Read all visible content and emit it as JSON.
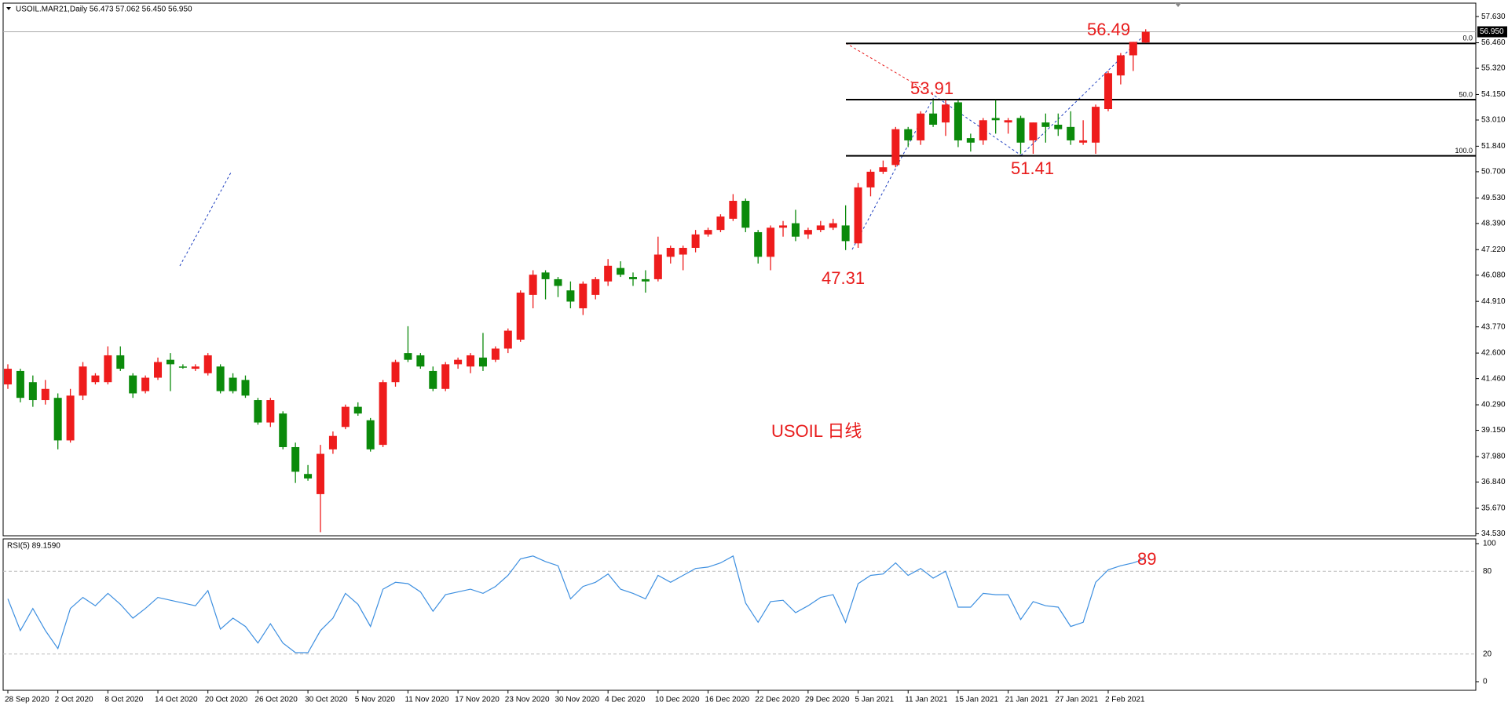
{
  "chart_data": [
    {
      "type": "candlestick",
      "header": "USOIL.MAR21,Daily  56.473 57.062 56.450 56.950",
      "categories": [
        "28 Sep 2020",
        null,
        null,
        null,
        "2 Oct 2020",
        null,
        null,
        null,
        "8 Oct 2020",
        null,
        null,
        null,
        "14 Oct 2020",
        null,
        null,
        null,
        "20 Oct 2020",
        null,
        null,
        null,
        "26 Oct 2020",
        null,
        null,
        null,
        "30 Oct 2020",
        null,
        null,
        null,
        "5 Nov 2020",
        null,
        null,
        null,
        "11 Nov 2020",
        null,
        null,
        null,
        "17 Nov 2020",
        null,
        null,
        null,
        "23 Nov 2020",
        null,
        null,
        null,
        "30 Nov 2020",
        null,
        null,
        null,
        "4 Dec 2020",
        null,
        null,
        null,
        "10 Dec 2020",
        null,
        null,
        null,
        "16 Dec 2020",
        null,
        null,
        null,
        "22 Dec 2020",
        null,
        null,
        null,
        "29 Dec 2020",
        null,
        null,
        null,
        "5 Jan 2021",
        null,
        null,
        null,
        "11 Jan 2021",
        null,
        null,
        null,
        "15 Jan 2021",
        null,
        null,
        null,
        "21 Jan 2021",
        null,
        null,
        null,
        "27 Jan 2021",
        null,
        null,
        null,
        "2 Feb 2021",
        null,
        null,
        null
      ],
      "open": [
        41.2,
        41.8,
        41.3,
        40.5,
        40.6,
        38.7,
        40.7,
        41.3,
        41.3,
        42.5,
        41.6,
        40.9,
        41.5,
        42.3,
        42.0,
        41.9,
        41.7,
        42.0,
        41.5,
        41.4,
        40.5,
        39.5,
        39.9,
        38.4,
        37.2,
        36.3,
        38.3,
        39.3,
        40.2,
        39.6,
        38.5,
        41.3,
        42.6,
        42.5,
        41.8,
        41.0,
        42.1,
        42.0,
        42.4,
        42.3,
        42.8,
        43.2,
        45.2,
        46.2,
        45.9,
        45.4,
        44.6,
        45.2,
        45.8,
        46.4,
        46.0,
        45.9,
        45.9,
        46.9,
        47.0,
        47.3,
        47.9,
        48.1,
        48.6,
        49.4,
        48.0,
        46.9,
        48.2,
        48.4,
        47.9,
        48.1,
        48.2,
        48.3,
        47.5,
        50.0,
        50.7,
        51.0,
        52.6,
        52.1,
        53.3,
        52.9,
        53.8,
        52.2,
        52.1,
        53.1,
        52.9,
        53.1,
        52.1,
        52.9,
        52.8,
        52.7,
        52.0,
        52.0,
        53.5,
        55.0,
        55.9,
        56.473
      ],
      "high": [
        42.1,
        41.9,
        41.6,
        41.4,
        40.8,
        41.0,
        42.2,
        41.7,
        42.9,
        42.9,
        41.7,
        41.6,
        42.4,
        42.6,
        42.1,
        42.1,
        42.6,
        42.1,
        41.7,
        41.6,
        40.6,
        40.6,
        40.0,
        38.6,
        37.6,
        38.5,
        39.1,
        40.3,
        40.4,
        39.7,
        41.4,
        42.3,
        43.8,
        42.6,
        42.0,
        42.2,
        42.4,
        42.6,
        43.5,
        42.9,
        43.7,
        45.4,
        46.3,
        46.3,
        46.0,
        45.8,
        45.8,
        46.0,
        46.8,
        46.7,
        46.2,
        46.3,
        47.8,
        47.4,
        47.4,
        48.1,
        48.2,
        48.8,
        49.7,
        49.5,
        48.1,
        48.3,
        48.5,
        49.0,
        48.2,
        48.5,
        48.6,
        49.2,
        50.2,
        50.8,
        51.2,
        52.7,
        52.7,
        53.4,
        53.9,
        53.9,
        53.9,
        52.4,
        53.1,
        53.9,
        53.1,
        53.2,
        52.9,
        53.3,
        53.3,
        53.4,
        53.0,
        53.7,
        55.2,
        56.0,
        56.5,
        57.062
      ],
      "low": [
        41.0,
        40.4,
        40.2,
        40.3,
        38.3,
        38.6,
        40.5,
        41.2,
        41.2,
        41.8,
        40.6,
        40.8,
        41.4,
        40.9,
        41.9,
        41.8,
        41.6,
        40.8,
        40.8,
        40.6,
        39.4,
        39.3,
        38.3,
        36.8,
        36.9,
        34.6,
        38.1,
        39.2,
        39.8,
        38.2,
        38.4,
        41.1,
        42.2,
        41.9,
        40.9,
        40.9,
        41.9,
        41.7,
        41.8,
        42.2,
        42.6,
        43.1,
        44.6,
        45.0,
        45.1,
        44.6,
        44.3,
        45.0,
        45.6,
        46.0,
        45.6,
        45.3,
        45.8,
        46.6,
        46.3,
        47.1,
        47.8,
        48.0,
        48.5,
        48.0,
        46.6,
        46.3,
        47.8,
        47.6,
        47.7,
        48.0,
        48.1,
        47.2,
        47.3,
        49.6,
        50.6,
        50.9,
        51.8,
        51.9,
        52.7,
        52.3,
        51.8,
        51.6,
        51.9,
        52.4,
        52.4,
        51.5,
        51.5,
        52.0,
        52.3,
        51.9,
        51.9,
        51.5,
        53.4,
        54.6,
        55.2,
        56.45
      ],
      "close": [
        41.9,
        40.6,
        40.5,
        41.0,
        38.7,
        40.7,
        42.0,
        41.6,
        42.5,
        41.9,
        40.8,
        41.5,
        42.2,
        42.1,
        41.95,
        42.0,
        42.5,
        40.9,
        40.9,
        40.7,
        39.5,
        40.5,
        38.4,
        37.3,
        37.0,
        38.1,
        38.9,
        40.2,
        39.9,
        38.3,
        41.3,
        42.2,
        42.3,
        42.0,
        41.0,
        42.1,
        42.3,
        42.5,
        42.0,
        42.8,
        43.6,
        45.3,
        46.1,
        45.9,
        45.6,
        44.9,
        45.7,
        45.9,
        46.5,
        46.1,
        45.9,
        45.8,
        47.0,
        47.3,
        47.3,
        47.9,
        48.1,
        48.7,
        49.4,
        48.2,
        46.9,
        48.2,
        48.3,
        47.8,
        48.1,
        48.3,
        48.4,
        47.6,
        50.0,
        50.7,
        50.9,
        52.6,
        52.1,
        53.3,
        52.8,
        53.7,
        52.1,
        52.0,
        53.0,
        53.0,
        53.0,
        52.0,
        52.9,
        52.7,
        52.6,
        52.1,
        52.1,
        53.6,
        55.1,
        55.9,
        56.5,
        56.95
      ],
      "colors": {
        "up": "#ee1c1c",
        "down": "#0b8a0b"
      },
      "ylim": [
        34.44,
        58.23
      ],
      "yticks": [
        {
          "value": 57.63,
          "label": "57.630"
        },
        {
          "value": 56.46,
          "label": "56.460"
        },
        {
          "value": 55.32,
          "label": "55.320"
        },
        {
          "value": 54.15,
          "label": "54.150"
        },
        {
          "value": 53.01,
          "label": "53.010"
        },
        {
          "value": 51.84,
          "label": "51.840"
        },
        {
          "value": 50.7,
          "label": "50.700"
        },
        {
          "value": 49.53,
          "label": "49.530"
        },
        {
          "value": 48.39,
          "label": "48.390"
        },
        {
          "value": 47.22,
          "label": "47.220"
        },
        {
          "value": 46.08,
          "label": "46.080"
        },
        {
          "value": 44.91,
          "label": "44.910"
        },
        {
          "value": 43.77,
          "label": "43.770"
        },
        {
          "value": 42.6,
          "label": "42.600"
        },
        {
          "value": 41.46,
          "label": "41.460"
        },
        {
          "value": 40.29,
          "label": "40.290"
        },
        {
          "value": 39.15,
          "label": "39.150"
        },
        {
          "value": 37.98,
          "label": "37.980"
        },
        {
          "value": 36.84,
          "label": "36.840"
        },
        {
          "value": 35.67,
          "label": "35.670"
        },
        {
          "value": 34.53,
          "label": "34.530"
        }
      ],
      "last_price": {
        "value": 56.95,
        "label": "56.950"
      },
      "fib_levels": [
        {
          "value": 56.43,
          "label": "0.0"
        },
        {
          "value": 53.92,
          "label": "50.0"
        },
        {
          "value": 51.41,
          "label": "100.0"
        }
      ],
      "annotations": [
        "56.49",
        "53.91",
        "51.41",
        "47.31",
        "USOIL 日线"
      ]
    },
    {
      "type": "line",
      "label": "RSI(5) 89.1590",
      "color": "#3d8fe0",
      "values": [
        60,
        37,
        53,
        37,
        24,
        53,
        61,
        55,
        64,
        56,
        46,
        53,
        61,
        59,
        57,
        55,
        66,
        38,
        46,
        40,
        28,
        42,
        28,
        21,
        21,
        37,
        46,
        64,
        56,
        40,
        67,
        72,
        71,
        65,
        51,
        63,
        65,
        67,
        64,
        69,
        77,
        89,
        91,
        87,
        84,
        60,
        69,
        72,
        78,
        67,
        64,
        60,
        77,
        72,
        77,
        82,
        83,
        86,
        91,
        57,
        43,
        58,
        59,
        50,
        55,
        61,
        63,
        43,
        71,
        77,
        78,
        86,
        77,
        82,
        75,
        80,
        54,
        54,
        64,
        63,
        63,
        45,
        58,
        55,
        54,
        40,
        43,
        72,
        81,
        84,
        86,
        89.159
      ],
      "ylim": [
        0,
        100
      ],
      "yticks": [
        0,
        20,
        80,
        100
      ],
      "annotations": [
        "89"
      ]
    }
  ]
}
